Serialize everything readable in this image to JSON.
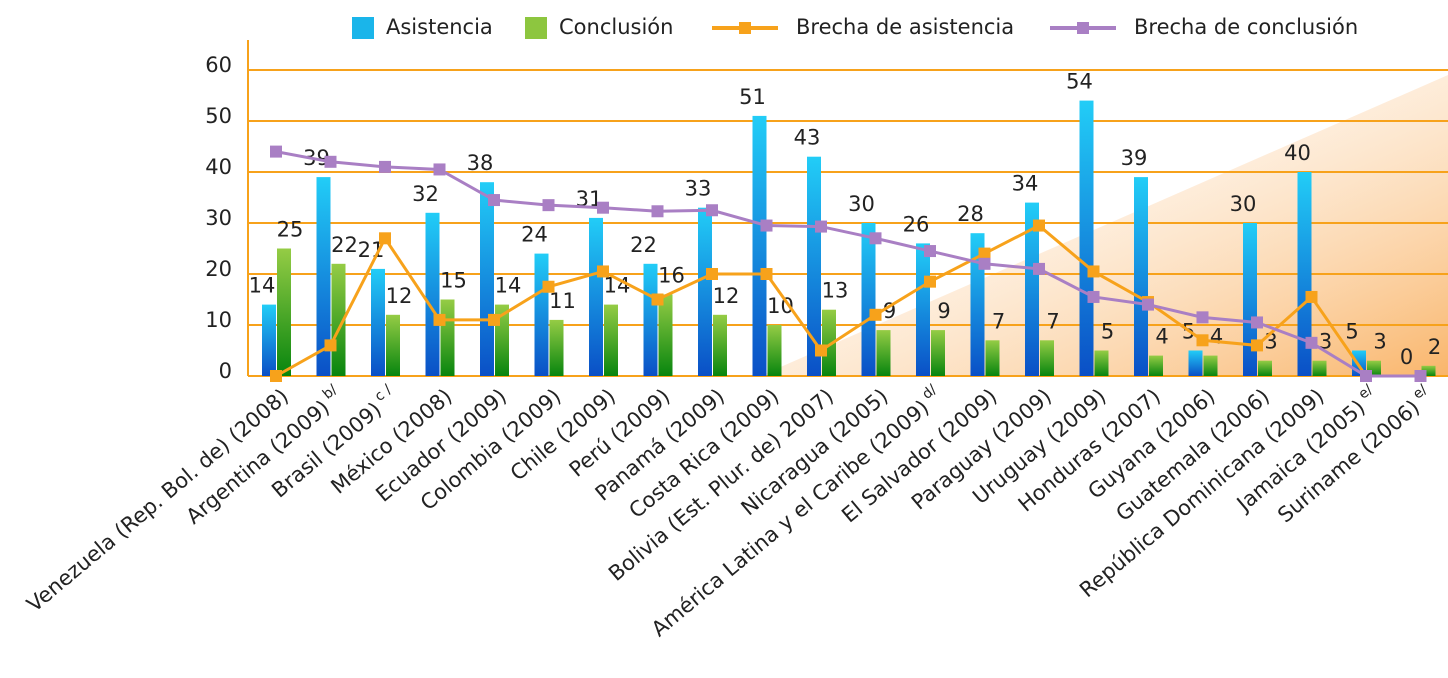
{
  "chart_data": {
    "type": "bar",
    "categories": [
      "Venezuela (Rep. Bol. de) (2008)",
      "Argentina (2009)",
      "Brasil (2009)",
      "México (2008)",
      "Ecuador (2009)",
      "Colombia (2009)",
      "Chile (2009)",
      "Perú (2009)",
      "Panamá (2009)",
      "Costa Rica (2009)",
      "Bolivia (Est. Plur. de) 2007)",
      "Nicaragua (2005)",
      "América Latina y el Caribe (2009)",
      "El Salvador (2009)",
      "Paraguay (2009)",
      "Uruguay (2009)",
      "Honduras (2007)",
      "Guyana (2006)",
      "Guatemala (2006)",
      "República Dominicana (2009)",
      "Jamaica (2005)",
      "Suriname (2006)"
    ],
    "category_notes": [
      null,
      "b/",
      "c /",
      null,
      null,
      null,
      null,
      null,
      null,
      null,
      null,
      null,
      "d/",
      null,
      null,
      null,
      null,
      null,
      null,
      null,
      "e/",
      "e/"
    ],
    "series": [
      {
        "name": "Asistencia",
        "type": "bar",
        "color": "#1ab5ea",
        "values": [
          14,
          39,
          21,
          32,
          38,
          24,
          31,
          22,
          33,
          51,
          43,
          30,
          26,
          28,
          34,
          54,
          39,
          5,
          30,
          40,
          5,
          0
        ]
      },
      {
        "name": "Conclusión",
        "type": "bar",
        "color": "#8dc63f",
        "values": [
          25,
          22,
          12,
          15,
          14,
          11,
          14,
          16,
          12,
          10,
          13,
          9,
          9,
          7,
          7,
          5,
          4,
          4,
          3,
          3,
          3,
          2
        ]
      },
      {
        "name": "Brecha de asistencia",
        "type": "line",
        "color": "#f7a21b",
        "values": [
          0,
          6,
          27,
          11,
          11,
          17.5,
          20.5,
          15,
          20,
          20,
          5,
          12,
          18.5,
          24,
          29.5,
          20.5,
          14.5,
          7,
          6,
          15.5,
          0,
          0
        ]
      },
      {
        "name": "Brecha de conclusión",
        "type": "line",
        "color": "#a97fc4",
        "values": [
          44,
          42,
          41,
          40.5,
          34.5,
          33.5,
          33,
          32.3,
          32.5,
          29.5,
          29.3,
          27,
          24.5,
          22,
          21,
          15.5,
          14,
          11.5,
          10.5,
          6.5,
          0,
          0
        ]
      }
    ],
    "ylim": [
      0,
      60
    ],
    "yticks": [
      0,
      10,
      20,
      30,
      40,
      50,
      60
    ],
    "grid": true,
    "legend": "top"
  }
}
